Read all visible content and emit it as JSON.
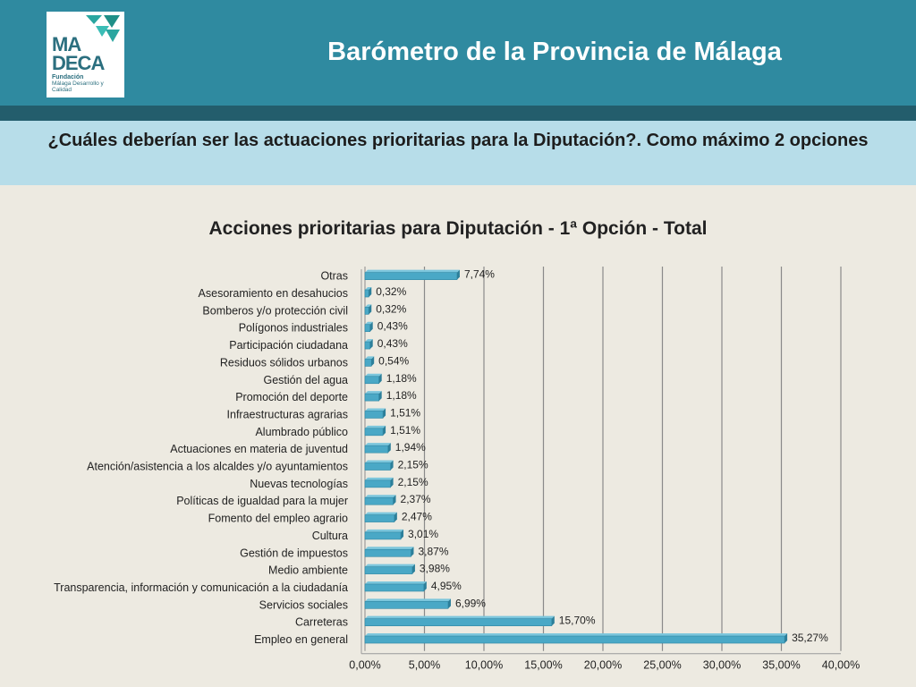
{
  "header": {
    "title": "Barómetro de la Provincia de Málaga",
    "logo_text": "MA\nDECA",
    "logo_sub_bold": "Fundación",
    "logo_sub": "Málaga Desarrollo y Calidad"
  },
  "question": "¿Cuáles deberían ser las actuaciones prioritarias para la Diputación?. Como máximo 2 opciones",
  "colors": {
    "header": "#2f8aa0",
    "strip": "#235d6c",
    "band": "#b7dde9",
    "bar": "#4aa8c6",
    "background": "#edeae1"
  },
  "chart_data": {
    "type": "bar",
    "orientation": "horizontal",
    "title": "Acciones prioritarias para Diputación - 1ª Opción - Total",
    "categories": [
      "Otras",
      "Asesoramiento en desahucios",
      "Bomberos y/o protección civil",
      "Polígonos industriales",
      "Participación ciudadana",
      "Residuos sólidos urbanos",
      "Gestión del agua",
      "Promoción del deporte",
      "Infraestructuras agrarias",
      "Alumbrado público",
      "Actuaciones en materia de juventud",
      "Atención/asistencia a los alcaldes y/o ayuntamientos",
      "Nuevas tecnologías",
      "Políticas de igualdad para la mujer",
      "Fomento del empleo agrario",
      "Cultura",
      "Gestión de impuestos",
      "Medio ambiente",
      "Transparencia, información y comunicación a la ciudadanía",
      "Servicios sociales",
      "Carreteras",
      "Empleo en general"
    ],
    "values": [
      7.74,
      0.32,
      0.32,
      0.43,
      0.43,
      0.54,
      1.18,
      1.18,
      1.51,
      1.51,
      1.94,
      2.15,
      2.15,
      2.37,
      2.47,
      3.01,
      3.87,
      3.98,
      4.95,
      6.99,
      15.7,
      35.27
    ],
    "value_labels": [
      "7,74%",
      "0,32%",
      "0,32%",
      "0,43%",
      "0,43%",
      "0,54%",
      "1,18%",
      "1,18%",
      "1,51%",
      "1,51%",
      "1,94%",
      "2,15%",
      "2,15%",
      "2,37%",
      "2,47%",
      "3,01%",
      "3,87%",
      "3,98%",
      "4,95%",
      "6,99%",
      "15,70%",
      "35,27%"
    ],
    "xlim": [
      0,
      40
    ],
    "x_ticks": [
      0,
      5,
      10,
      15,
      20,
      25,
      30,
      35,
      40
    ],
    "x_tick_labels": [
      "0,00%",
      "5,00%",
      "10,00%",
      "15,00%",
      "20,00%",
      "25,00%",
      "30,00%",
      "35,00%",
      "40,00%"
    ],
    "grid": true
  }
}
